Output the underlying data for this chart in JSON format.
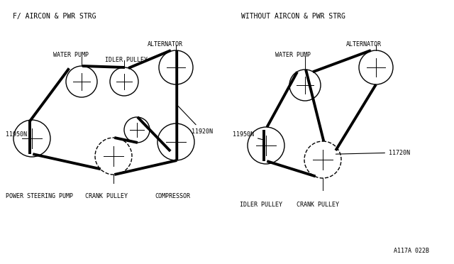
{
  "bg_color": "#ffffff",
  "belt_color": "#000000",
  "belt_lw": 2.8,
  "circle_lw": 1.0,
  "font_family": "monospace",
  "font_size": 6.0,
  "title_font_size": 7.0,
  "left_title": "F/ AIRCON & PWR STRG",
  "right_title": "WITHOUT AIRCON & PWR STRG",
  "footnote": "A117A 022B",
  "left": {
    "water_pump": [
      115,
      115,
      22
    ],
    "idler_pulley": [
      175,
      115,
      20
    ],
    "alternator": [
      248,
      95,
      24
    ],
    "power_steering": [
      45,
      195,
      26
    ],
    "crank_pulley": [
      160,
      220,
      26
    ],
    "idler_small": [
      193,
      183,
      18
    ],
    "compressor": [
      248,
      200,
      26
    ]
  },
  "right": {
    "water_pump": [
      430,
      120,
      22
    ],
    "alternator": [
      530,
      95,
      24
    ],
    "idler_pulley": [
      375,
      205,
      26
    ],
    "crank_pulley": [
      455,
      225,
      26
    ]
  },
  "left_labels": {
    "alternator": [
      208,
      58,
      "ALTERNATOR",
      "left"
    ],
    "water_pump": [
      75,
      73,
      "WATER PUMP",
      "left"
    ],
    "idler_pulley": [
      148,
      80,
      "IDLER PULLEY",
      "left"
    ],
    "power_steering": [
      8,
      272,
      "POWER STEERING PUMP",
      "left"
    ],
    "crank_pulley": [
      120,
      272,
      "CRANK PULLEY",
      "left"
    ],
    "compressor": [
      218,
      272,
      "COMPRESSOR",
      "left"
    ],
    "label_11950N": [
      8,
      190,
      "11950N",
      "left"
    ],
    "label_11920N": [
      270,
      185,
      "11920N",
      "left"
    ]
  },
  "right_labels": {
    "water_pump": [
      388,
      73,
      "WATER PUMP",
      "left"
    ],
    "alternator": [
      488,
      58,
      "ALTERNATOR",
      "left"
    ],
    "crank_pulley": [
      418,
      284,
      "CRANK PULLEY",
      "left"
    ],
    "idler_pulley": [
      338,
      284,
      "IDLER PULLEY",
      "left"
    ],
    "label_11950N": [
      328,
      190,
      "11950N",
      "left"
    ],
    "label_11720N": [
      548,
      215,
      "11720N",
      "left"
    ]
  }
}
